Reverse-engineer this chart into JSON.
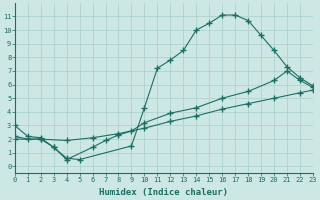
{
  "bg_color": "#cde8e4",
  "grid_color": "#aacfcb",
  "line_color": "#1a6e64",
  "line1_x": [
    0,
    1,
    2,
    3,
    4,
    5,
    9,
    10,
    11,
    12,
    13,
    14,
    15,
    16,
    17,
    18,
    19,
    20,
    21,
    22,
    23
  ],
  "line1_y": [
    3.0,
    2.2,
    2.1,
    1.4,
    0.6,
    0.5,
    1.5,
    4.3,
    7.2,
    7.8,
    8.5,
    10.0,
    10.5,
    11.1,
    11.1,
    10.7,
    9.6,
    8.5,
    7.3,
    6.5,
    5.9
  ],
  "line2_x": [
    0,
    1,
    2,
    3,
    4,
    6,
    7,
    8,
    9,
    10,
    12,
    14,
    16,
    18,
    20,
    21,
    22,
    23
  ],
  "line2_y": [
    2.2,
    2.0,
    2.0,
    1.4,
    0.5,
    1.4,
    1.9,
    2.3,
    2.6,
    3.2,
    3.9,
    4.3,
    5.0,
    5.5,
    6.3,
    7.0,
    6.3,
    5.8
  ],
  "line3_x": [
    0,
    2,
    4,
    6,
    8,
    10,
    12,
    14,
    16,
    18,
    20,
    22,
    23
  ],
  "line3_y": [
    2.0,
    2.0,
    1.9,
    2.1,
    2.4,
    2.8,
    3.3,
    3.7,
    4.2,
    4.6,
    5.0,
    5.4,
    5.6
  ],
  "xlim": [
    0,
    23
  ],
  "ylim": [
    -0.5,
    12.0
  ],
  "xlabel": "Humidex (Indice chaleur)",
  "xticks": [
    0,
    1,
    2,
    3,
    4,
    5,
    6,
    7,
    8,
    9,
    10,
    11,
    12,
    13,
    14,
    15,
    16,
    17,
    18,
    19,
    20,
    21,
    22,
    23
  ],
  "yticks": [
    0,
    1,
    2,
    3,
    4,
    5,
    6,
    7,
    8,
    9,
    10,
    11
  ],
  "marker": "+",
  "markersize": 4.0,
  "linewidth": 0.8,
  "xlabel_fontsize": 6.5,
  "tick_fontsize": 5.0
}
